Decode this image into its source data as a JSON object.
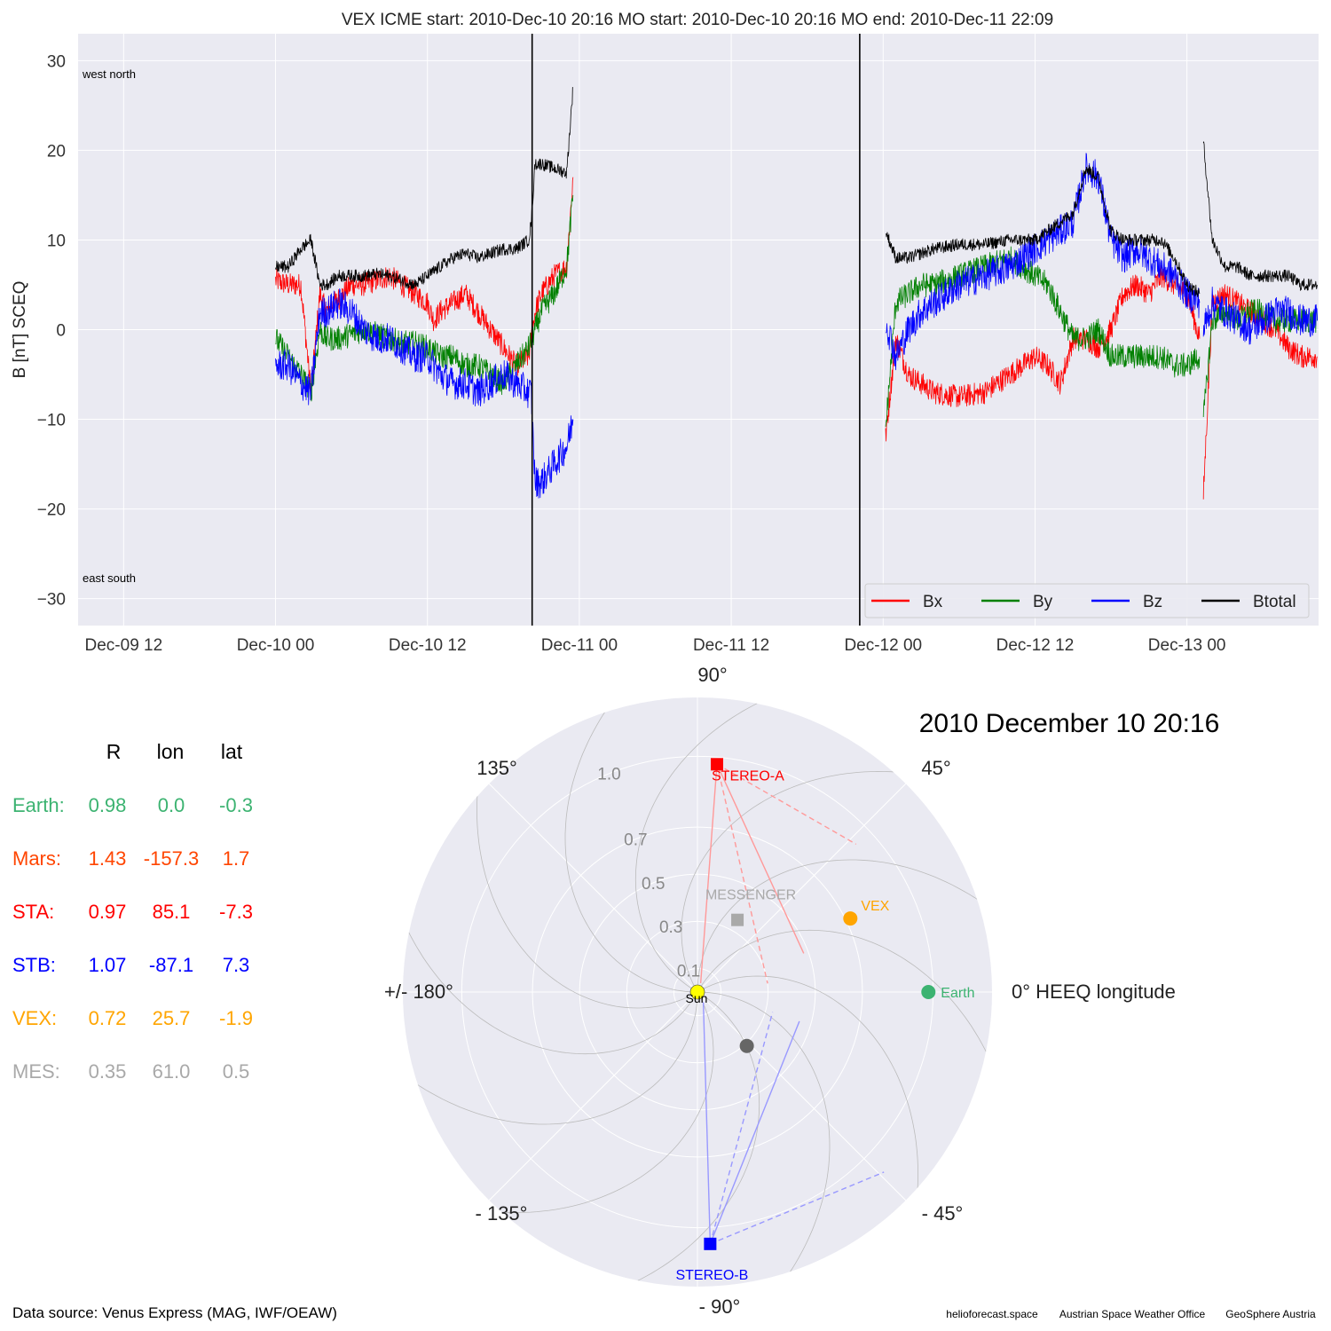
{
  "top_panel": {
    "title": "VEX    ICME start: 2010-Dec-10 20:16   MO start: 2010-Dec-10 20:16   MO end: 2010-Dec-11 22:09",
    "ylabel": "B [nT] SCEQ",
    "corner_labels": {
      "top": "west    north",
      "bottom": "east    south"
    }
  },
  "chart_data": [
    {
      "type": "line",
      "title": "VEX    ICME start: 2010-Dec-10 20:16   MO start: 2010-Dec-10 20:16   MO end: 2010-Dec-11 22:09",
      "xlabel": "",
      "ylabel": "B [nT] SCEQ",
      "x_unit": "hours since 2010-Dec-09 00:00",
      "xlim": [
        8.4,
        106.4
      ],
      "ylim": [
        -33,
        33
      ],
      "xticks": [
        12,
        24,
        36,
        48,
        60,
        72,
        84,
        96
      ],
      "xticklabels": [
        "Dec-09 12",
        "Dec-10 00",
        "Dec-10 12",
        "Dec-11 00",
        "Dec-11 12",
        "Dec-12 00",
        "Dec-12 12",
        "Dec-13 00"
      ],
      "yticks": [
        -30,
        -20,
        -10,
        0,
        10,
        20,
        30
      ],
      "yticklabels": [
        "−30",
        "−20",
        "−10",
        "0",
        "10",
        "20",
        "30"
      ],
      "grid": true,
      "legend": {
        "placement": "lower-right",
        "ncol": 4
      },
      "event_markers": [
        {
          "name": "ICME/MO start",
          "x": 44.27
        },
        {
          "name": "MO end",
          "x": 70.15
        }
      ],
      "series": [
        {
          "name": "Bx",
          "color": "#ff0000",
          "width": 0.8,
          "x": [
            24,
            25,
            26,
            26.8,
            27.5,
            28,
            29,
            30,
            31,
            32,
            33,
            34,
            35,
            36,
            36.5,
            37,
            38,
            39,
            40,
            41,
            42,
            43,
            44,
            44.5,
            45,
            46,
            47,
            47.5,
            null,
            72.2,
            73,
            74,
            75,
            76,
            78,
            80,
            82,
            84,
            85,
            86,
            87,
            88,
            89,
            90,
            91,
            92,
            93,
            94,
            95,
            96,
            97,
            null,
            97.3,
            98,
            99,
            100,
            101,
            102,
            103,
            104,
            105,
            106.3
          ],
          "y": [
            5.5,
            5,
            5,
            -7,
            4,
            2,
            3.5,
            5,
            5,
            5.5,
            6,
            5,
            4,
            3,
            1,
            2,
            3,
            4,
            2,
            0,
            -2,
            -4,
            -3,
            2,
            4,
            6,
            7,
            17,
            null,
            -12,
            -1,
            -5,
            -6,
            -7,
            -7.5,
            -7,
            -5,
            -3,
            -4,
            -6,
            -1,
            -1,
            -2,
            0,
            4,
            5,
            4,
            6,
            5,
            4,
            -1,
            null,
            -18.5,
            3,
            4,
            3,
            2,
            1,
            0,
            -2,
            -3,
            -3
          ],
          "jitter": 1.3
        },
        {
          "name": "By",
          "color": "#008000",
          "width": 0.8,
          "x": [
            24,
            25,
            26,
            26.8,
            27.5,
            28,
            29,
            30,
            31,
            32,
            33,
            34,
            35,
            36,
            37,
            38,
            39,
            40,
            41,
            42,
            43,
            44,
            44.5,
            45,
            46,
            47,
            47.5,
            null,
            72.2,
            73,
            74,
            75,
            76,
            78,
            80,
            82,
            84,
            85,
            86,
            87,
            88,
            89,
            90,
            91,
            92,
            93,
            94,
            95,
            96,
            97,
            null,
            97.3,
            98,
            99,
            100,
            101,
            102,
            103,
            104,
            105,
            106.3
          ],
          "y": [
            -1,
            -3,
            -5,
            -7,
            0,
            -1,
            -1,
            -0.5,
            0,
            -0.5,
            -1,
            -1.5,
            -1.5,
            -2,
            -3,
            -3,
            -4,
            -4,
            -5,
            -6,
            -4,
            -2,
            0,
            2,
            4,
            7,
            15,
            null,
            -11,
            3,
            4,
            5,
            5,
            6,
            7,
            8,
            6,
            5,
            2,
            -1,
            -1,
            0,
            -3,
            -3,
            -3,
            -3,
            -3,
            -4,
            -4,
            -3,
            null,
            -10,
            1,
            2,
            1,
            2,
            2,
            1,
            1,
            1,
            1
          ],
          "jitter": 1.4
        },
        {
          "name": "Bz",
          "color": "#0000ff",
          "width": 0.8,
          "x": [
            24,
            25,
            26,
            26.8,
            27.5,
            28,
            29,
            30,
            31,
            32,
            33,
            34,
            35,
            36,
            37,
            38,
            39,
            40,
            41,
            42,
            43,
            44,
            44.2,
            44.5,
            45,
            46,
            47,
            47.5,
            null,
            72.2,
            73,
            74,
            75,
            76,
            78,
            80,
            82,
            84,
            85,
            86,
            87,
            88,
            89,
            90,
            91,
            92,
            93,
            94,
            95,
            96,
            97,
            null,
            97.3,
            98,
            99,
            100,
            101,
            102,
            103,
            104,
            105,
            106.3
          ],
          "y": [
            -4,
            -4,
            -6,
            -7,
            2,
            2,
            3,
            2,
            0,
            -1,
            -1,
            -2,
            -3,
            -3,
            -5,
            -6,
            -6,
            -7,
            -6,
            -5,
            -6,
            -7,
            -7,
            -17,
            -17,
            -15,
            -13,
            -10,
            null,
            1,
            -3,
            0,
            2,
            3,
            5,
            6,
            7,
            9,
            10,
            11,
            12,
            18,
            17,
            10,
            8,
            9,
            8,
            7,
            6,
            4,
            3,
            null,
            0,
            3,
            2,
            1,
            0,
            1,
            2,
            2,
            1,
            1
          ],
          "jitter": 1.8
        },
        {
          "name": "Btotal",
          "color": "#000000",
          "width": 0.8,
          "x": [
            24,
            25,
            26,
            26.8,
            27.5,
            28,
            29,
            30,
            31,
            32,
            33,
            34,
            35,
            36,
            37,
            38,
            39,
            40,
            41,
            42,
            43,
            44,
            44.2,
            44.5,
            45,
            46,
            47,
            47.5,
            null,
            72.2,
            73,
            74,
            75,
            76,
            78,
            80,
            82,
            84,
            85,
            86,
            87,
            88,
            89,
            90,
            91,
            92,
            93,
            94,
            95,
            96,
            97,
            null,
            97.3,
            98,
            99,
            100,
            101,
            102,
            103,
            104,
            105,
            106.3
          ],
          "y": [
            7,
            7,
            9,
            10,
            5,
            5,
            6,
            6,
            6,
            6.2,
            6,
            5.5,
            5,
            6,
            7,
            8,
            8.5,
            8,
            8.5,
            9,
            9,
            10,
            12,
            18.5,
            18.5,
            18,
            17.5,
            27,
            null,
            11,
            8,
            8,
            8.5,
            9,
            9.5,
            9.5,
            10,
            10,
            11,
            12,
            13,
            18,
            17,
            11,
            10,
            10,
            10,
            10,
            8,
            5,
            4,
            null,
            21,
            10,
            7,
            7,
            6,
            6,
            6,
            6,
            5,
            5
          ],
          "jitter": 0.7
        }
      ]
    },
    {
      "type": "scatter",
      "subtype": "polar",
      "title": "2010 December 10  20:16",
      "theta_unit": "degrees HEEQ longitude",
      "r_unit": "AU",
      "rlim": [
        0,
        1.25
      ],
      "r_ticks": [
        0.1,
        0.3,
        0.5,
        0.7,
        1.0
      ],
      "r_ticklabels": [
        "0.1",
        "0.3",
        "0.5",
        "0.7",
        "1.0"
      ],
      "theta_ticklabels": [
        {
          "deg": 0,
          "label": "0° HEEQ longitude"
        },
        {
          "deg": 45,
          "label": "45°"
        },
        {
          "deg": 90,
          "label": "90°"
        },
        {
          "deg": 135,
          "label": "135°"
        },
        {
          "deg": 180,
          "label": "+/- 180°"
        },
        {
          "deg": -135,
          "label": "- 135°"
        },
        {
          "deg": -90,
          "label": "- 90°"
        },
        {
          "deg": -45,
          "label": "- 45°"
        }
      ],
      "grid": true,
      "bodies": [
        {
          "name": "Sun",
          "label": "Sun",
          "r": 0,
          "lon": 0,
          "color": "#ffff00",
          "marker": "circle"
        },
        {
          "name": "Earth",
          "label": "Earth",
          "r": 0.98,
          "lon": 0.0,
          "color": "#3cb371",
          "marker": "circle"
        },
        {
          "name": "VEX",
          "label": "VEX",
          "r": 0.72,
          "lon": 25.7,
          "color": "#ffa500",
          "marker": "circle"
        },
        {
          "name": "MESSENGER",
          "label": "MESSENGER",
          "r": 0.35,
          "lon": 61.0,
          "color": "#a9a9a9",
          "marker": "square"
        },
        {
          "name": "STEREO-A",
          "label": "STEREO-A",
          "r": 0.97,
          "lon": 85.1,
          "color": "#ff0000",
          "marker": "square"
        },
        {
          "name": "STEREO-B",
          "label": "STEREO-B",
          "r": 1.07,
          "lon": -87.1,
          "color": "#0000ff",
          "marker": "square"
        },
        {
          "name": "Mercury",
          "label": "",
          "r": 0.31,
          "lon": -47.5,
          "color": "#666666",
          "marker": "circle"
        }
      ],
      "fov_lines": [
        {
          "from": "STEREO-A",
          "color": "#ff9999",
          "dashed": false,
          "to": {
            "r": 0.48,
            "lon": 20
          }
        },
        {
          "from": "STEREO-A",
          "color": "#ff9999",
          "dashed": true,
          "to": {
            "r": 0.3,
            "lon": 7
          }
        },
        {
          "from": "STEREO-A",
          "color": "#ff9999",
          "dashed": false,
          "to": {
            "r": 0.04,
            "lon": 70
          }
        },
        {
          "from": "STEREO-A",
          "color": "#ff9999",
          "dashed": true,
          "to": {
            "r": 0.92,
            "lon": 43
          }
        },
        {
          "from": "STEREO-B",
          "color": "#9999ff",
          "dashed": false,
          "to": {
            "r": 0.45,
            "lon": -16
          }
        },
        {
          "from": "STEREO-B",
          "color": "#9999ff",
          "dashed": true,
          "to": {
            "r": 0.33,
            "lon": -15
          }
        },
        {
          "from": "STEREO-B",
          "color": "#9999ff",
          "dashed": false,
          "to": {
            "r": 0.05,
            "lon": -60
          }
        },
        {
          "from": "STEREO-B",
          "color": "#9999ff",
          "dashed": true,
          "to": {
            "r": 1.1,
            "lon": -44
          }
        }
      ],
      "spiral_count": 12
    }
  ],
  "positions_table": {
    "headers": [
      "R",
      "lon",
      "lat"
    ],
    "rows": [
      {
        "name": "Earth:",
        "R": "0.98",
        "lon": "0.0",
        "lat": "-0.3",
        "color": "#3cb371"
      },
      {
        "name": "Mars:",
        "R": "1.43",
        "lon": "-157.3",
        "lat": "1.7",
        "color": "#ff4500"
      },
      {
        "name": "STA:",
        "R": "0.97",
        "lon": "85.1",
        "lat": "-7.3",
        "color": "#ff0000"
      },
      {
        "name": "STB:",
        "R": "1.07",
        "lon": "-87.1",
        "lat": "7.3",
        "color": "#0000ff"
      },
      {
        "name": "VEX:",
        "R": "0.72",
        "lon": "25.7",
        "lat": "-1.9",
        "color": "#ffa500"
      },
      {
        "name": "MES:",
        "R": "0.35",
        "lon": "61.0",
        "lat": "0.5",
        "color": "#a9a9a9"
      }
    ]
  },
  "footer": {
    "source": "Data source: Venus Express (MAG, IWF/OEAW)",
    "credits": [
      "helioforecast.space",
      "Austrian Space Weather Office",
      "GeoSphere Austria"
    ]
  },
  "colors": {
    "axes_bg": "#eaeaf2",
    "grid": "#ffffff",
    "spiral": "#bbbbbb",
    "text": "#000000",
    "tick_text": "#333333"
  }
}
